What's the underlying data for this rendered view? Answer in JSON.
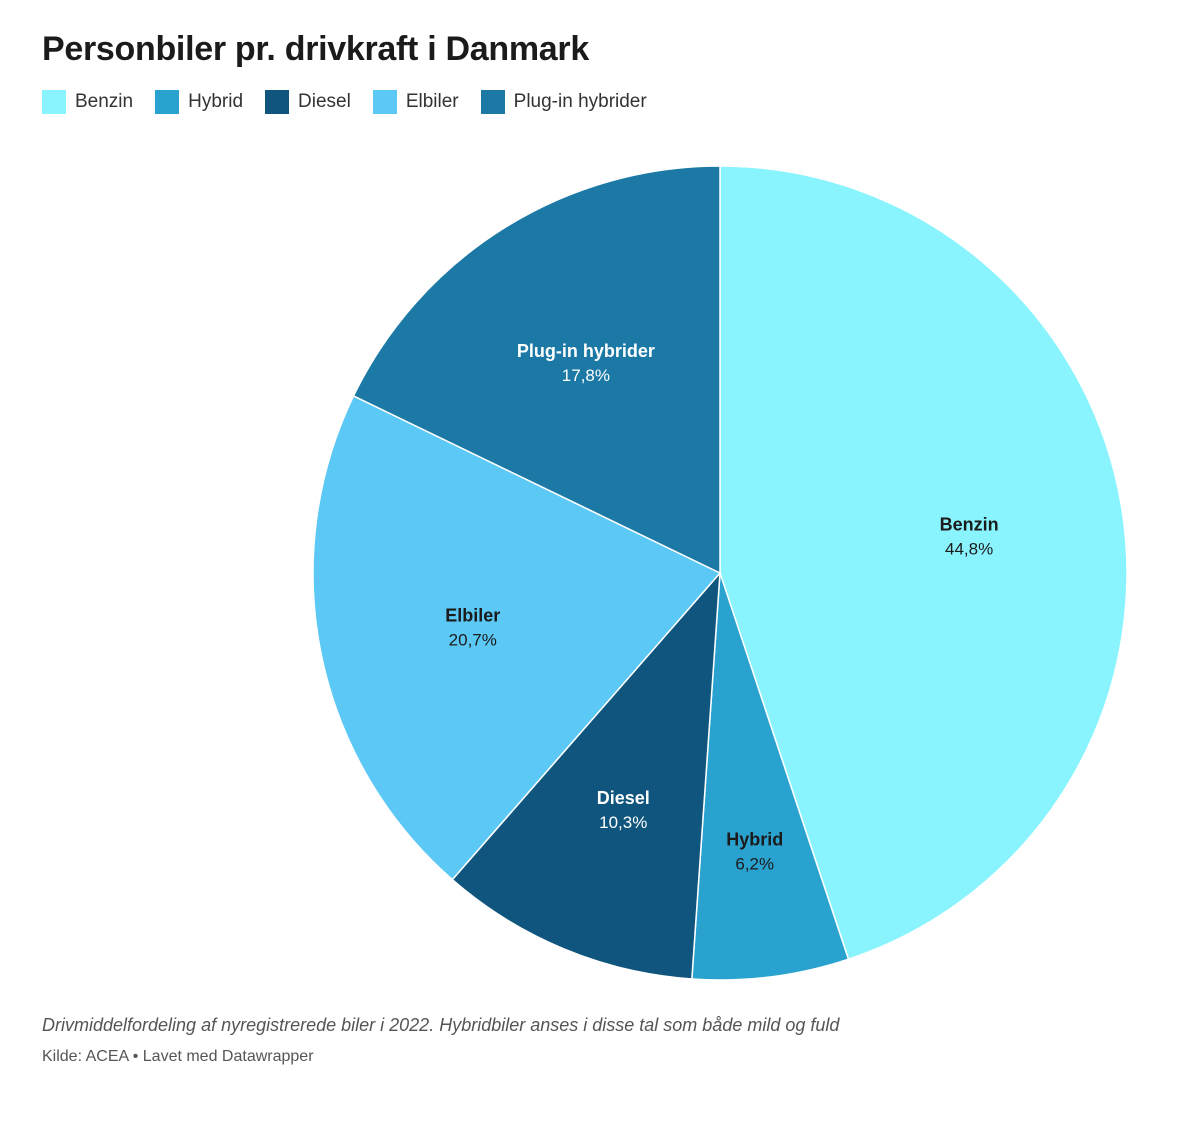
{
  "title": "Personbiler pr. drivkraft i Danmark",
  "colors": {
    "Benzin": "#8af4fe",
    "Hybrid": "#2aa2cf",
    "Diesel": "#10557d",
    "Elbiler": "#5bc8f5",
    "Plug-in hybrider": "#1c79a6"
  },
  "legend": [
    {
      "label": "Benzin",
      "color": "#8af4fe"
    },
    {
      "label": "Hybrid",
      "color": "#2aa2cf"
    },
    {
      "label": "Diesel",
      "color": "#10557d"
    },
    {
      "label": "Elbiler",
      "color": "#5bc8f5"
    },
    {
      "label": "Plug-in hybrider",
      "color": "#1c79a6"
    }
  ],
  "chart_data": {
    "type": "pie",
    "title": "Personbiler pr. drivkraft i Danmark",
    "legend_position": "top-left",
    "slices": [
      {
        "label": "Benzin",
        "value": 44.8,
        "display": "44,8%",
        "color": "#8af4fe",
        "text_color": "#1b1b1b"
      },
      {
        "label": "Hybrid",
        "value": 6.2,
        "display": "6,2%",
        "color": "#2aa2cf",
        "text_color": "#1b1b1b"
      },
      {
        "label": "Diesel",
        "value": 10.3,
        "display": "10,3%",
        "color": "#10557d",
        "text_color": "#ffffff"
      },
      {
        "label": "Elbiler",
        "value": 20.7,
        "display": "20,7%",
        "color": "#5bc8f5",
        "text_color": "#1b1b1b"
      },
      {
        "label": "Plug-in hybrider",
        "value": 17.8,
        "display": "17,8%",
        "color": "#1c79a6",
        "text_color": "#ffffff"
      }
    ]
  },
  "footer": {
    "note": "Drivmiddelfordeling af nyregistrerede biler i 2022. Hybridbiler anses i disse tal som både mild og fuld",
    "source": "Kilde: ACEA • Lavet med Datawrapper"
  }
}
